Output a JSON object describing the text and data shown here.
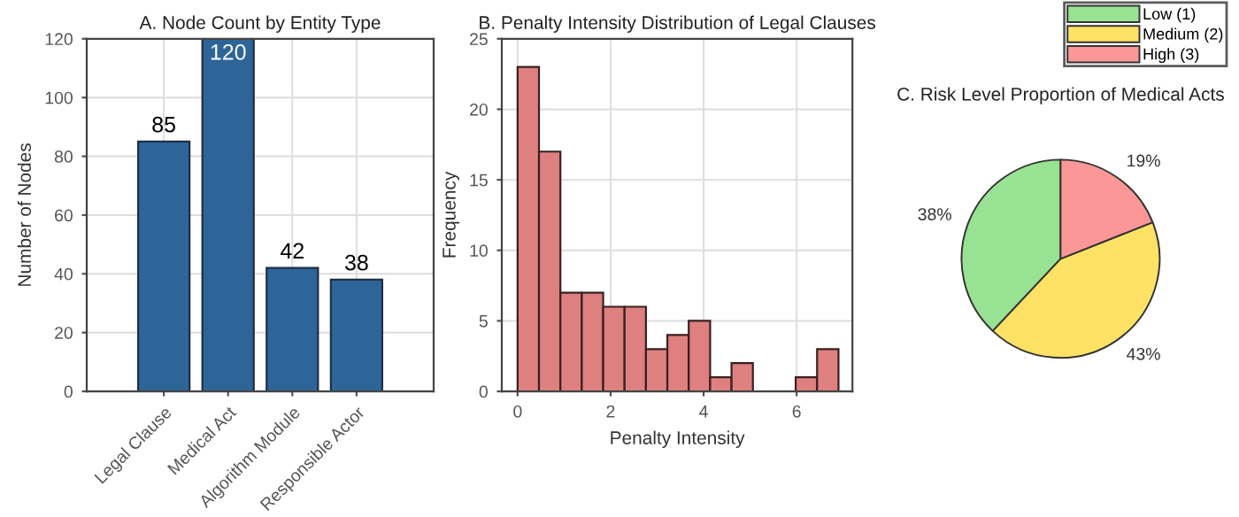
{
  "chart_data": [
    {
      "type": "bar",
      "title": "A. Node Count by Entity Type",
      "ylabel": "Number of Nodes",
      "categories": [
        "Legal Clause",
        "Medical Act",
        "Algorithm Module",
        "Responsible Actor"
      ],
      "values": [
        85,
        120,
        42,
        38
      ],
      "color": "#2e6599",
      "ylim": [
        0,
        120
      ],
      "yticks": [
        0,
        20,
        40,
        60,
        80,
        100,
        120
      ],
      "grid": true,
      "data_labels": true
    },
    {
      "type": "histogram",
      "title": "B. Penalty Intensity Distribution of Legal Clauses",
      "xlabel": "Penalty Intensity",
      "ylabel": "Frequency",
      "bins": [
        0.0,
        0.46,
        0.92,
        1.38,
        1.84,
        2.3,
        2.76,
        3.22,
        3.68,
        4.14,
        4.6,
        5.06,
        5.52,
        5.98,
        6.44,
        6.9
      ],
      "values": [
        23,
        17,
        7,
        7,
        6,
        6,
        3,
        4,
        5,
        1,
        2,
        0,
        0,
        1,
        3
      ],
      "color": "#de8080",
      "xlim": [
        -0.34,
        7.2
      ],
      "xticks": [
        0,
        2,
        4,
        6
      ],
      "ylim": [
        0,
        25
      ],
      "yticks": [
        0,
        5,
        10,
        15,
        20,
        25
      ],
      "grid": true
    },
    {
      "type": "pie",
      "title": "C. Risk Level Proportion of Medical Acts",
      "categories": [
        "Low (1)",
        "Medium (2)",
        "High (3)"
      ],
      "values": [
        38,
        43,
        19
      ],
      "colors": [
        "#98e294",
        "#fde266",
        "#fc9797"
      ],
      "value_labels": [
        "38%",
        "43%",
        "19%"
      ],
      "legend": "top right"
    }
  ]
}
